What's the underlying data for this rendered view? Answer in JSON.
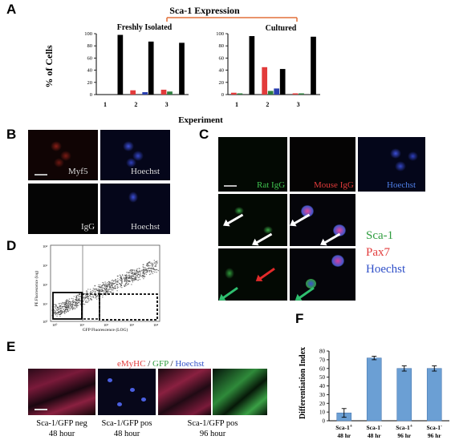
{
  "panels": {
    "A": "A",
    "B": "B",
    "C": "C",
    "D": "D",
    "E": "E",
    "F": "F"
  },
  "panelA": {
    "title": "Sca-1 Expression",
    "ylabel": "% of Cells",
    "xlabel": "Experiment",
    "left_title": "Freshly Isolated",
    "right_title": "Cultured",
    "yticks": [
      "100",
      "80",
      "60",
      "40",
      "20",
      "0"
    ]
  },
  "chart_data": [
    {
      "type": "bar",
      "title": "Freshly Isolated",
      "categories": [
        "1",
        "2",
        "3"
      ],
      "ylabel": "% of Cells",
      "xlabel": "Experiment",
      "ylim": [
        0,
        100
      ],
      "series": [
        {
          "color": "#e23b3b",
          "values": [
            0,
            7,
            8
          ]
        },
        {
          "color": "#2f7f3f",
          "values": [
            0,
            0,
            5
          ]
        },
        {
          "color": "#2a3fb0",
          "values": [
            0,
            4,
            0
          ]
        },
        {
          "color": "#000000",
          "values": [
            98,
            87,
            85
          ]
        }
      ]
    },
    {
      "type": "bar",
      "title": "Cultured",
      "categories": [
        "1",
        "2",
        "3"
      ],
      "ylim": [
        0,
        100
      ],
      "series": [
        {
          "color": "#e23b3b",
          "values": [
            3,
            45,
            2
          ]
        },
        {
          "color": "#2f7f3f",
          "values": [
            2,
            6,
            2
          ]
        },
        {
          "color": "#2a3fb0",
          "values": [
            0,
            10,
            0
          ]
        },
        {
          "color": "#000000",
          "values": [
            96,
            42,
            95
          ]
        }
      ]
    },
    {
      "type": "bar",
      "title": "",
      "categories": [
        "Sca-1+ 48 hr",
        "Sca-1- 48 hr",
        "Sca-1+ 96 hr",
        "Sca-1- 96 hr"
      ],
      "ylabel": "Differentiation Index",
      "ylim": [
        0,
        80
      ],
      "yticks": [
        "80",
        "70",
        "60",
        "50",
        "40",
        "30",
        "20",
        "10",
        "0"
      ],
      "series": [
        {
          "values": [
            9,
            72,
            60,
            60
          ],
          "errors": [
            5,
            2,
            3,
            3
          ],
          "color": "#6b9fd4"
        }
      ]
    }
  ],
  "panelB": {
    "labels": [
      "Myf5",
      "Hoechst",
      "IgG",
      "Hoechst"
    ]
  },
  "panelC": {
    "top_labels": [
      "Rat IgG",
      "Mouse IgG",
      "Hoechst"
    ],
    "legend": [
      "Sca-1",
      "Pax7",
      "Hoechst"
    ]
  },
  "panelD": {
    "ylabel": "PE Fluorescence (log)",
    "xlabel": "GFP Fluorescence (LOG)",
    "ticks": [
      "10⁰",
      "10¹",
      "10²",
      "10³",
      "10⁴"
    ]
  },
  "panelE": {
    "legend": {
      "a": "eMyHC",
      "sep1": " / ",
      "b": "GFP",
      "sep2": " / ",
      "c": "Hoechst"
    },
    "captions": [
      {
        "line1": "Sca-1/GFP neg",
        "line2": "48 hour"
      },
      {
        "line1": "Sca-1/GFP pos",
        "line2": "48 hour"
      },
      {
        "line1": "Sca-1/GFP pos",
        "line2": "96 hour"
      }
    ]
  },
  "panelF": {
    "ylabel": "Differentiation Index",
    "xlabels": [
      {
        "main": "Sca-1",
        "sup": "+",
        "time": "48 hr"
      },
      {
        "main": "Sca-1",
        "sup": "-",
        "time": "48 hr"
      },
      {
        "main": "Sca-1",
        "sup": "+",
        "time": "96 hr"
      },
      {
        "main": "Sca-1",
        "sup": "-",
        "time": "96 hr"
      }
    ]
  }
}
